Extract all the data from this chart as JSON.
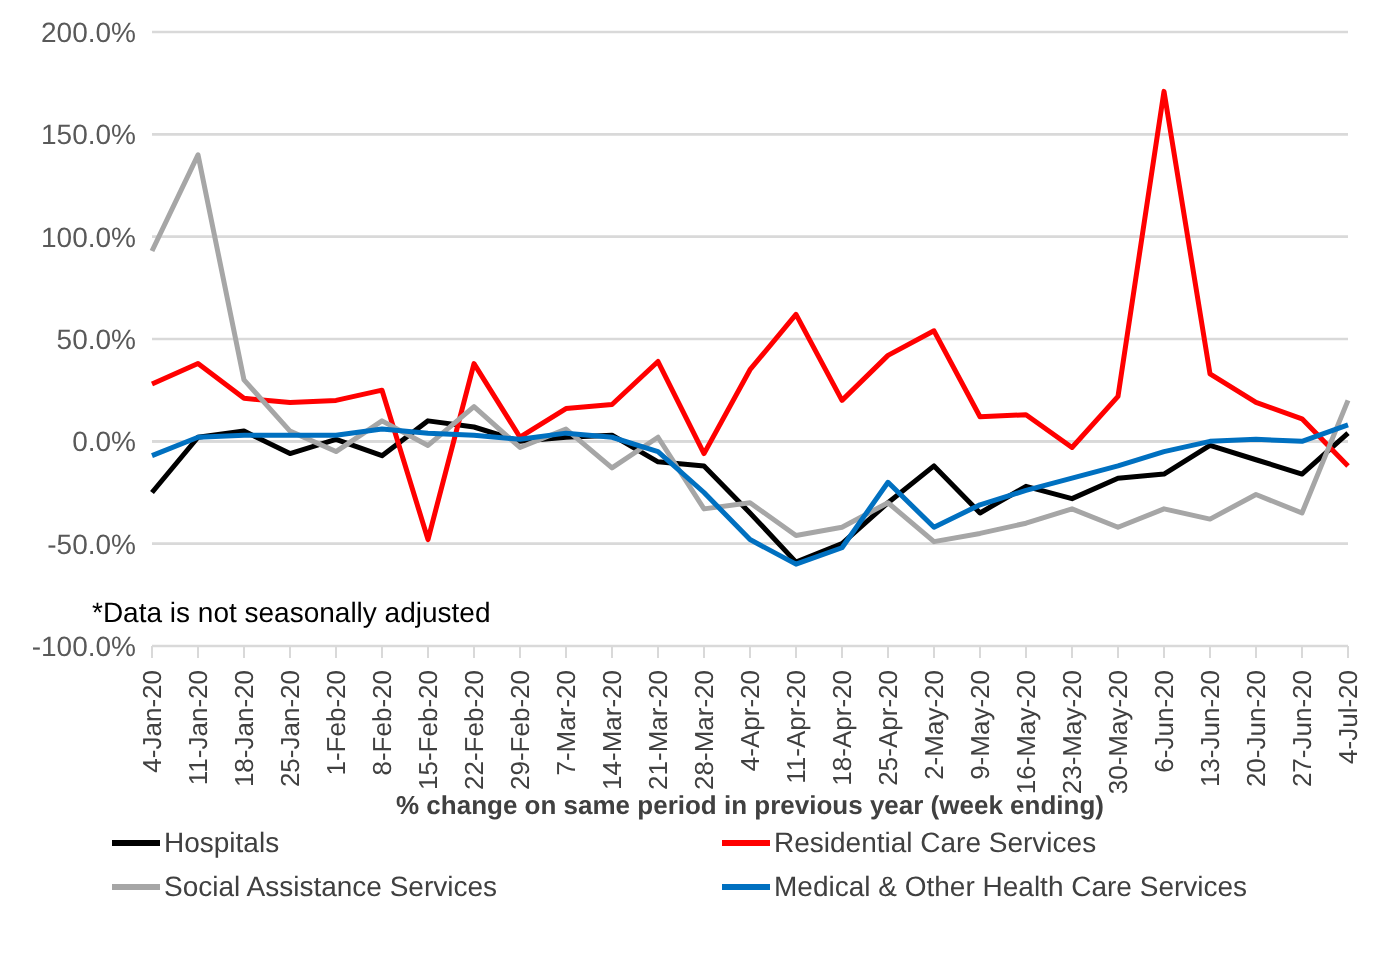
{
  "chart_data": {
    "type": "line",
    "xlabel": "% change on same period in previous year (week ending)",
    "annotations": [
      "*Data is not seasonally adjusted"
    ],
    "categories": [
      "4-Jan-20",
      "11-Jan-20",
      "18-Jan-20",
      "25-Jan-20",
      "1-Feb-20",
      "8-Feb-20",
      "15-Feb-20",
      "22-Feb-20",
      "29-Feb-20",
      "7-Mar-20",
      "14-Mar-20",
      "21-Mar-20",
      "28-Mar-20",
      "4-Apr-20",
      "11-Apr-20",
      "18-Apr-20",
      "25-Apr-20",
      "2-May-20",
      "9-May-20",
      "16-May-20",
      "23-May-20",
      "30-May-20",
      "6-Jun-20",
      "13-Jun-20",
      "20-Jun-20",
      "27-Jun-20",
      "4-Jul-20"
    ],
    "series": [
      {
        "name": "Hospitals",
        "color": "#000000",
        "values": [
          -25,
          2,
          5,
          -6,
          1,
          -7,
          10,
          7,
          0,
          2,
          3,
          -10,
          -12,
          -35,
          -59,
          -50,
          -30,
          -12,
          -35,
          -22,
          -28,
          -18,
          -16,
          -2,
          -9,
          -16,
          4
        ]
      },
      {
        "name": "Residential Care Services",
        "color": "#ff0000",
        "values": [
          28,
          38,
          21,
          19,
          20,
          25,
          -48,
          38,
          2,
          16,
          18,
          39,
          -6,
          35,
          62,
          20,
          42,
          54,
          12,
          13,
          -3,
          22,
          171,
          33,
          19,
          11,
          -12
        ]
      },
      {
        "name": "Social Assistance Services",
        "color": "#a6a6a6",
        "values": [
          93,
          140,
          30,
          5,
          -5,
          10,
          -2,
          17,
          -3,
          6,
          -13,
          2,
          -33,
          -30,
          -46,
          -42,
          -30,
          -49,
          -45,
          -40,
          -33,
          -42,
          -33,
          -38,
          -26,
          -35,
          20
        ]
      },
      {
        "name": "Medical & Other Health Care Services",
        "color": "#0070c0",
        "values": [
          -7,
          2,
          3,
          3,
          3,
          6,
          4,
          3,
          1,
          4,
          2,
          -5,
          -25,
          -48,
          -60,
          -52,
          -20,
          -42,
          -31,
          -24,
          -18,
          -12,
          -5,
          0,
          1,
          0,
          8
        ]
      }
    ],
    "ylim": [
      -100,
      200
    ],
    "yticks": [
      {
        "value": -100,
        "label": "-100.0%"
      },
      {
        "value": -50,
        "label": "-50.0%"
      },
      {
        "value": 0,
        "label": "0.0%"
      },
      {
        "value": 50,
        "label": "50.0%"
      },
      {
        "value": 100,
        "label": "100.0%"
      },
      {
        "value": 150,
        "label": "150.0%"
      },
      {
        "value": 200,
        "label": "200.0%"
      }
    ],
    "grid": "y",
    "legend": "bottom",
    "marker": "none",
    "line_style": "solid"
  }
}
